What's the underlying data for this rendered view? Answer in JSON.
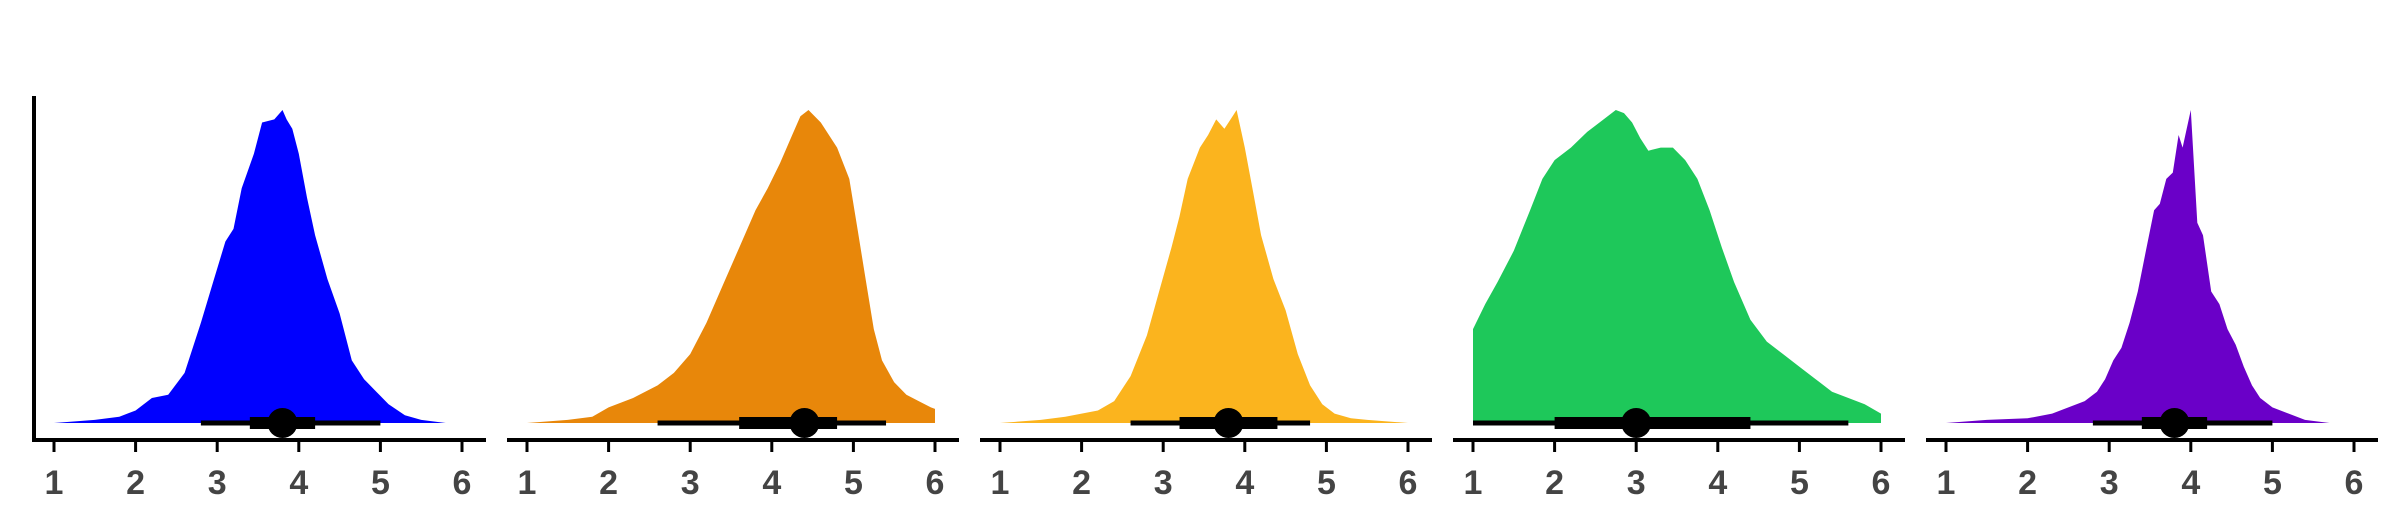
{
  "chart_data": {
    "type": "area",
    "grid": false,
    "legend": "none",
    "panels": [
      {
        "color": "#0000ff",
        "xlim": [
          1,
          6
        ],
        "xticks": [
          "1",
          "2",
          "3",
          "4",
          "5",
          "6"
        ],
        "density": [
          [
            1.0,
            0.0
          ],
          [
            1.5,
            0.01
          ],
          [
            1.8,
            0.02
          ],
          [
            2.0,
            0.04
          ],
          [
            2.2,
            0.08
          ],
          [
            2.4,
            0.09
          ],
          [
            2.6,
            0.16
          ],
          [
            2.8,
            0.32
          ],
          [
            2.95,
            0.45
          ],
          [
            3.1,
            0.58
          ],
          [
            3.2,
            0.62
          ],
          [
            3.3,
            0.75
          ],
          [
            3.45,
            0.86
          ],
          [
            3.55,
            0.96
          ],
          [
            3.7,
            0.97
          ],
          [
            3.8,
            1.0
          ],
          [
            3.85,
            0.97
          ],
          [
            3.92,
            0.94
          ],
          [
            4.0,
            0.86
          ],
          [
            4.1,
            0.72
          ],
          [
            4.2,
            0.6
          ],
          [
            4.35,
            0.46
          ],
          [
            4.5,
            0.35
          ],
          [
            4.65,
            0.2
          ],
          [
            4.8,
            0.14
          ],
          [
            4.95,
            0.1
          ],
          [
            5.1,
            0.06
          ],
          [
            5.3,
            0.025
          ],
          [
            5.5,
            0.01
          ],
          [
            5.8,
            0.0
          ]
        ],
        "interval_thin": [
          2.8,
          5.0
        ],
        "interval_thick": [
          3.4,
          4.2
        ],
        "point": 3.8
      },
      {
        "color": "#e8870a",
        "xlim": [
          1,
          6
        ],
        "xticks": [
          "1",
          "2",
          "3",
          "4",
          "5",
          "6"
        ],
        "density": [
          [
            1.0,
            0.0
          ],
          [
            1.5,
            0.01
          ],
          [
            1.8,
            0.02
          ],
          [
            2.0,
            0.05
          ],
          [
            2.3,
            0.08
          ],
          [
            2.6,
            0.12
          ],
          [
            2.8,
            0.16
          ],
          [
            3.0,
            0.22
          ],
          [
            3.2,
            0.32
          ],
          [
            3.4,
            0.44
          ],
          [
            3.6,
            0.56
          ],
          [
            3.8,
            0.68
          ],
          [
            3.95,
            0.75
          ],
          [
            4.1,
            0.83
          ],
          [
            4.25,
            0.92
          ],
          [
            4.35,
            0.98
          ],
          [
            4.45,
            1.0
          ],
          [
            4.6,
            0.96
          ],
          [
            4.8,
            0.88
          ],
          [
            4.95,
            0.78
          ],
          [
            5.05,
            0.62
          ],
          [
            5.15,
            0.46
          ],
          [
            5.25,
            0.3
          ],
          [
            5.35,
            0.2
          ],
          [
            5.5,
            0.13
          ],
          [
            5.65,
            0.09
          ],
          [
            5.8,
            0.07
          ],
          [
            5.95,
            0.05
          ],
          [
            6.0,
            0.045
          ]
        ],
        "interval_thin": [
          2.6,
          5.4
        ],
        "interval_thick": [
          3.6,
          4.8
        ],
        "point": 4.4
      },
      {
        "color": "#fbb41e",
        "xlim": [
          1,
          6
        ],
        "xticks": [
          "1",
          "2",
          "3",
          "4",
          "5",
          "6"
        ],
        "density": [
          [
            1.0,
            0.0
          ],
          [
            1.5,
            0.01
          ],
          [
            1.8,
            0.02
          ],
          [
            2.0,
            0.03
          ],
          [
            2.2,
            0.04
          ],
          [
            2.4,
            0.07
          ],
          [
            2.6,
            0.15
          ],
          [
            2.8,
            0.28
          ],
          [
            2.95,
            0.42
          ],
          [
            3.1,
            0.56
          ],
          [
            3.2,
            0.66
          ],
          [
            3.3,
            0.78
          ],
          [
            3.45,
            0.88
          ],
          [
            3.55,
            0.92
          ],
          [
            3.65,
            0.97
          ],
          [
            3.75,
            0.94
          ],
          [
            3.85,
            0.98
          ],
          [
            3.9,
            1.0
          ],
          [
            4.0,
            0.88
          ],
          [
            4.1,
            0.74
          ],
          [
            4.2,
            0.6
          ],
          [
            4.35,
            0.46
          ],
          [
            4.5,
            0.36
          ],
          [
            4.65,
            0.22
          ],
          [
            4.8,
            0.12
          ],
          [
            4.95,
            0.06
          ],
          [
            5.1,
            0.03
          ],
          [
            5.3,
            0.015
          ],
          [
            5.5,
            0.01
          ],
          [
            6.0,
            0.0
          ]
        ],
        "interval_thin": [
          2.6,
          4.8
        ],
        "interval_thick": [
          3.2,
          4.4
        ],
        "point": 3.8
      },
      {
        "color": "#1ec85a",
        "xlim": [
          1,
          6
        ],
        "xticks": [
          "1",
          "2",
          "3",
          "4",
          "5",
          "6"
        ],
        "density": [
          [
            1.0,
            0.3
          ],
          [
            1.15,
            0.38
          ],
          [
            1.3,
            0.45
          ],
          [
            1.5,
            0.55
          ],
          [
            1.7,
            0.68
          ],
          [
            1.85,
            0.78
          ],
          [
            2.0,
            0.84
          ],
          [
            2.2,
            0.88
          ],
          [
            2.4,
            0.93
          ],
          [
            2.6,
            0.97
          ],
          [
            2.75,
            1.0
          ],
          [
            2.85,
            0.99
          ],
          [
            2.95,
            0.96
          ],
          [
            3.05,
            0.91
          ],
          [
            3.15,
            0.87
          ],
          [
            3.3,
            0.88
          ],
          [
            3.45,
            0.88
          ],
          [
            3.6,
            0.84
          ],
          [
            3.75,
            0.78
          ],
          [
            3.9,
            0.68
          ],
          [
            4.05,
            0.56
          ],
          [
            4.2,
            0.45
          ],
          [
            4.4,
            0.33
          ],
          [
            4.6,
            0.26
          ],
          [
            4.8,
            0.22
          ],
          [
            5.0,
            0.18
          ],
          [
            5.2,
            0.14
          ],
          [
            5.4,
            0.1
          ],
          [
            5.6,
            0.08
          ],
          [
            5.8,
            0.06
          ],
          [
            6.0,
            0.03
          ]
        ],
        "interval_thin": [
          1.0,
          5.6
        ],
        "interval_thick": [
          2.0,
          4.4
        ],
        "point": 3.0
      },
      {
        "color": "#6a00c8",
        "xlim": [
          1,
          6
        ],
        "xticks": [
          "1",
          "2",
          "3",
          "4",
          "5",
          "6"
        ],
        "density": [
          [
            1.0,
            0.0
          ],
          [
            1.5,
            0.01
          ],
          [
            2.0,
            0.015
          ],
          [
            2.3,
            0.03
          ],
          [
            2.5,
            0.05
          ],
          [
            2.7,
            0.07
          ],
          [
            2.85,
            0.1
          ],
          [
            2.95,
            0.14
          ],
          [
            3.05,
            0.2
          ],
          [
            3.15,
            0.24
          ],
          [
            3.25,
            0.32
          ],
          [
            3.35,
            0.42
          ],
          [
            3.45,
            0.55
          ],
          [
            3.55,
            0.68
          ],
          [
            3.62,
            0.7
          ],
          [
            3.7,
            0.78
          ],
          [
            3.78,
            0.8
          ],
          [
            3.85,
            0.92
          ],
          [
            3.9,
            0.88
          ],
          [
            3.95,
            0.94
          ],
          [
            4.0,
            1.0
          ],
          [
            4.08,
            0.64
          ],
          [
            4.15,
            0.6
          ],
          [
            4.25,
            0.42
          ],
          [
            4.35,
            0.38
          ],
          [
            4.45,
            0.3
          ],
          [
            4.55,
            0.25
          ],
          [
            4.65,
            0.18
          ],
          [
            4.75,
            0.12
          ],
          [
            4.85,
            0.08
          ],
          [
            5.0,
            0.05
          ],
          [
            5.2,
            0.03
          ],
          [
            5.4,
            0.01
          ],
          [
            5.7,
            0.0
          ]
        ],
        "interval_thin": [
          2.8,
          5.0
        ],
        "interval_thick": [
          3.4,
          4.2
        ],
        "point": 3.8
      }
    ]
  }
}
